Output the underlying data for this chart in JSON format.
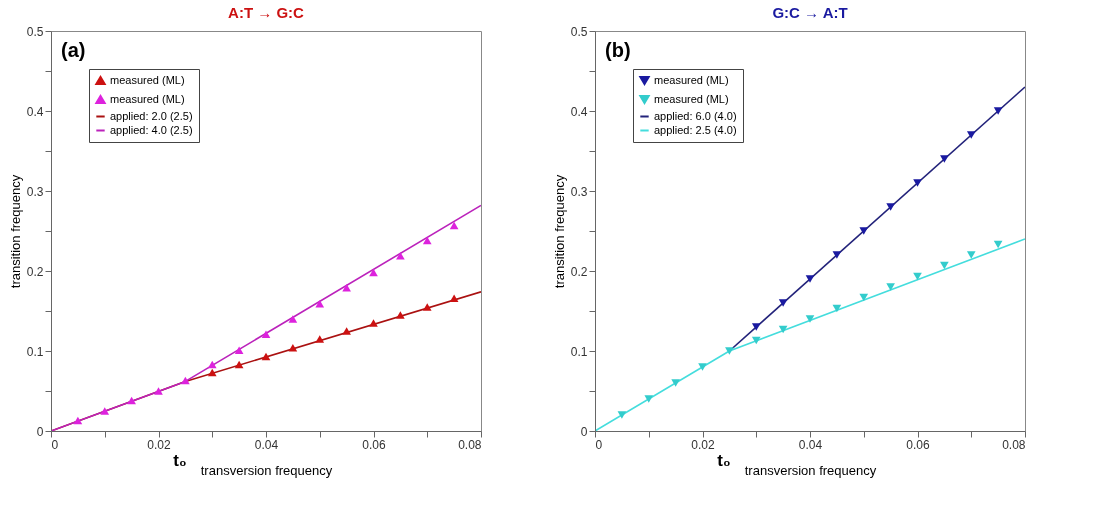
{
  "chart_data": [
    {
      "type": "scatter",
      "title": "A:T → G:C",
      "xlabel": "transversion frequency",
      "ylabel": "transition frequency",
      "xlim": [
        0,
        0.08
      ],
      "ylim": [
        0,
        0.5
      ],
      "xticks": [
        0,
        {
          "value": 0.01,
          "label": null
        },
        0.02,
        {
          "value": 0.03,
          "label": null
        },
        0.04,
        {
          "value": 0.05,
          "label": null
        },
        0.06,
        {
          "value": 0.07,
          "label": null
        },
        0.08
      ],
      "yticks": [
        0,
        {
          "value": 0.05,
          "label": null
        },
        0.1,
        {
          "value": 0.15,
          "label": null
        },
        0.2,
        {
          "value": 0.25,
          "label": null
        },
        0.3,
        {
          "value": 0.35,
          "label": null
        },
        0.4,
        {
          "value": 0.45,
          "label": null
        },
        0.5
      ],
      "legend": "top left",
      "annotations": [
        "(a)",
        "t₀"
      ],
      "series": [
        {
          "name": "measured (ML)",
          "marker": "triangle",
          "color": "#cc1111",
          "x": [
            0.03,
            0.035,
            0.04,
            0.045,
            0.05,
            0.055,
            0.06,
            0.065,
            0.07,
            0.075
          ],
          "values": [
            0.073,
            0.083,
            0.093,
            0.104,
            0.115,
            0.125,
            0.135,
            0.145,
            0.155,
            0.166
          ]
        },
        {
          "name": "measured (ML)",
          "marker": "triangle",
          "color": "#dd22dd",
          "x": [
            0.005,
            0.01,
            0.015,
            0.02,
            0.025,
            0.03,
            0.035,
            0.04,
            0.045,
            0.05,
            0.055,
            0.06,
            0.065,
            0.07,
            0.075
          ],
          "values": [
            0.013,
            0.025,
            0.038,
            0.05,
            0.063,
            0.083,
            0.101,
            0.121,
            0.14,
            0.159,
            0.179,
            0.198,
            0.219,
            0.238,
            0.257
          ]
        },
        {
          "name": "applied: 2.0 (2.5)",
          "type": "line",
          "color": "#aa1111",
          "x": [
            0,
            0.025,
            0.08
          ],
          "values": [
            0,
            0.062,
            0.174
          ]
        },
        {
          "name": "applied: 4.0 (2.5)",
          "type": "line",
          "color": "#bb22bb",
          "x": [
            0,
            0.025,
            0.08
          ],
          "values": [
            0,
            0.062,
            0.282
          ]
        }
      ]
    },
    {
      "type": "scatter",
      "title": "G:C → A:T",
      "xlabel": "transversion frequency",
      "ylabel": "transition frequency",
      "xlim": [
        0,
        0.08
      ],
      "ylim": [
        0,
        0.5
      ],
      "xticks": [
        0,
        {
          "value": 0.01,
          "label": null
        },
        0.02,
        {
          "value": 0.03,
          "label": null
        },
        0.04,
        {
          "value": 0.05,
          "label": null
        },
        0.06,
        {
          "value": 0.07,
          "label": null
        },
        0.08
      ],
      "yticks": [
        0,
        {
          "value": 0.05,
          "label": null
        },
        0.1,
        {
          "value": 0.15,
          "label": null
        },
        0.2,
        {
          "value": 0.25,
          "label": null
        },
        0.3,
        {
          "value": 0.35,
          "label": null
        },
        0.4,
        {
          "value": 0.45,
          "label": null
        },
        0.5
      ],
      "legend": "top left",
      "annotations": [
        "(b)",
        "t₀"
      ],
      "series": [
        {
          "name": "measured (ML)",
          "marker": "triangle-down",
          "color": "#1a1aa0",
          "x": [
            0.03,
            0.035,
            0.04,
            0.045,
            0.05,
            0.055,
            0.06,
            0.065,
            0.07,
            0.075
          ],
          "values": [
            0.13,
            0.16,
            0.19,
            0.22,
            0.25,
            0.28,
            0.31,
            0.34,
            0.37,
            0.4
          ]
        },
        {
          "name": "measured (ML)",
          "marker": "triangle-down",
          "color": "#33cccc",
          "x": [
            0.005,
            0.01,
            0.015,
            0.02,
            0.025,
            0.03,
            0.035,
            0.04,
            0.045,
            0.05,
            0.055,
            0.06,
            0.065,
            0.07,
            0.075
          ],
          "values": [
            0.02,
            0.04,
            0.06,
            0.08,
            0.1,
            0.113,
            0.127,
            0.14,
            0.153,
            0.167,
            0.18,
            0.193,
            0.207,
            0.22,
            0.233
          ]
        },
        {
          "name": "applied: 6.0 (4.0)",
          "type": "line",
          "color": "#22227a",
          "x": [
            0.025,
            0.08
          ],
          "values": [
            0.1,
            0.43
          ]
        },
        {
          "name": "applied: 2.5 (4.0)",
          "type": "line",
          "color": "#44dddd",
          "x": [
            0,
            0.025,
            0.08
          ],
          "values": [
            0,
            0.1,
            0.24
          ]
        }
      ]
    }
  ]
}
